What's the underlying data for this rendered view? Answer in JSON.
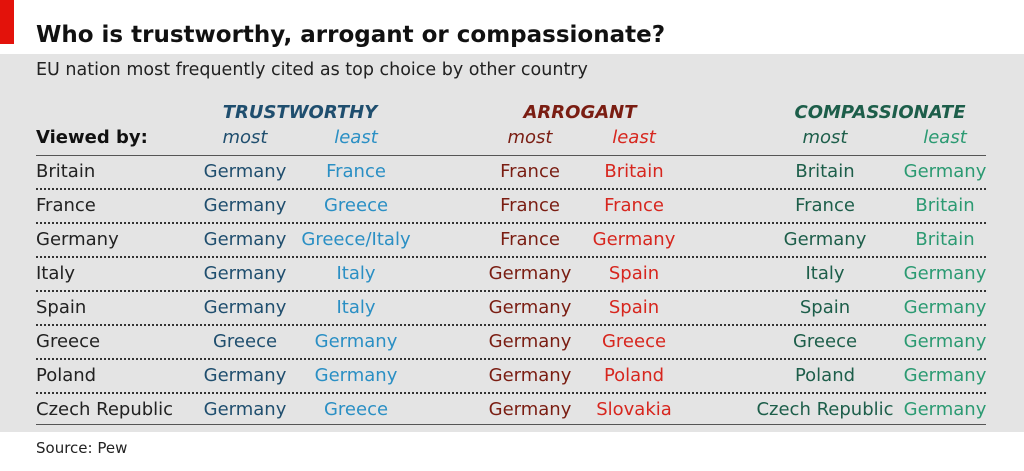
{
  "title": "Who is trustworthy, arrogant or compassionate?",
  "subtitle": "EU nation most frequently cited as top choice by other country",
  "source": "Source: Pew",
  "colors": {
    "trust_most": "#1f4e6e",
    "trust_least": "#2a8fc4",
    "arrogant_most": "#7a1d12",
    "arrogant_least": "#d7261e",
    "compassionate_most": "#1d5e4a",
    "compassionate_least": "#2b9a72",
    "accent_red": "#e3120b"
  },
  "chart_data": {
    "type": "table",
    "row_header": "Viewed by:",
    "groups": [
      {
        "label": "TRUSTWORTHY",
        "sub": [
          "most",
          "least"
        ]
      },
      {
        "label": "ARROGANT",
        "sub": [
          "most",
          "least"
        ]
      },
      {
        "label": "COMPASSIONATE",
        "sub": [
          "most",
          "least"
        ]
      }
    ],
    "rows": [
      {
        "country": "Britain",
        "values": [
          "Germany",
          "France",
          "France",
          "Britain",
          "Britain",
          "Germany"
        ]
      },
      {
        "country": "France",
        "values": [
          "Germany",
          "Greece",
          "France",
          "France",
          "France",
          "Britain"
        ]
      },
      {
        "country": "Germany",
        "values": [
          "Germany",
          "Greece/Italy",
          "France",
          "Germany",
          "Germany",
          "Britain"
        ]
      },
      {
        "country": "Italy",
        "values": [
          "Germany",
          "Italy",
          "Germany",
          "Spain",
          "Italy",
          "Germany"
        ]
      },
      {
        "country": "Spain",
        "values": [
          "Germany",
          "Italy",
          "Germany",
          "Spain",
          "Spain",
          "Germany"
        ]
      },
      {
        "country": "Greece",
        "values": [
          "Greece",
          "Germany",
          "Germany",
          "Greece",
          "Greece",
          "Germany"
        ]
      },
      {
        "country": "Poland",
        "values": [
          "Germany",
          "Germany",
          "Germany",
          "Poland",
          "Poland",
          "Germany"
        ]
      },
      {
        "country": "Czech Republic",
        "values": [
          "Germany",
          "Greece",
          "Germany",
          "Slovakia",
          "Czech Republic",
          "Germany"
        ]
      }
    ]
  }
}
